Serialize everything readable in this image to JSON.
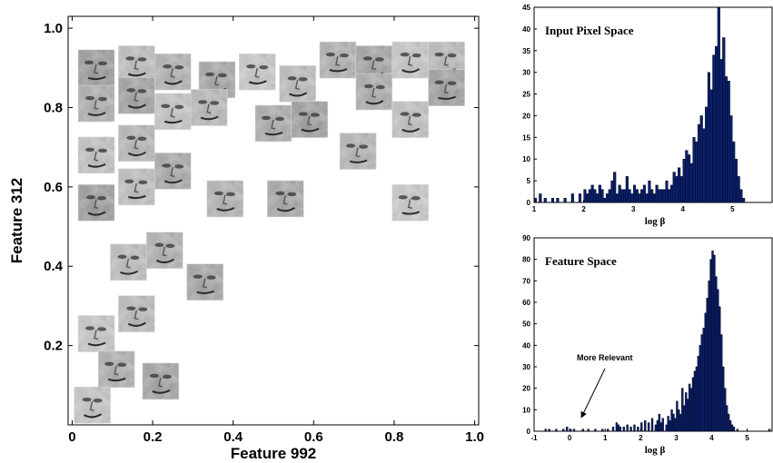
{
  "figure": {
    "scatter_xlabel": "Feature 992",
    "scatter_ylabel": "Feature 312",
    "hist_top_title": "Input Pixel Space",
    "hist_top_xlabel": "log β",
    "hist_bottom_title": "Feature Space",
    "hist_bottom_xlabel": "log β",
    "annotation": "More Relevant"
  },
  "chart_data": [
    {
      "type": "scatter",
      "title": "",
      "xlabel": "Feature 992",
      "ylabel": "Feature 312",
      "xlim": [
        -0.01,
        1.01
      ],
      "ylim": [
        0.0,
        1.03
      ],
      "xticks": [
        "0",
        "0.2",
        "0.4",
        "0.6",
        "0.8",
        "1.0"
      ],
      "yticks": [
        "0.2",
        "0.4",
        "0.6",
        "0.8",
        "1.0"
      ],
      "marker": "face-image-thumbnail",
      "points": [
        [
          0.06,
          0.9
        ],
        [
          0.16,
          0.91
        ],
        [
          0.25,
          0.89
        ],
        [
          0.36,
          0.87
        ],
        [
          0.46,
          0.89
        ],
        [
          0.56,
          0.86
        ],
        [
          0.66,
          0.92
        ],
        [
          0.75,
          0.91
        ],
        [
          0.84,
          0.92
        ],
        [
          0.93,
          0.92
        ],
        [
          0.06,
          0.81
        ],
        [
          0.16,
          0.83
        ],
        [
          0.25,
          0.79
        ],
        [
          0.34,
          0.8
        ],
        [
          0.75,
          0.84
        ],
        [
          0.93,
          0.85
        ],
        [
          0.06,
          0.68
        ],
        [
          0.16,
          0.71
        ],
        [
          0.5,
          0.76
        ],
        [
          0.59,
          0.77
        ],
        [
          0.84,
          0.77
        ],
        [
          0.71,
          0.69
        ],
        [
          0.25,
          0.64
        ],
        [
          0.06,
          0.56
        ],
        [
          0.16,
          0.6
        ],
        [
          0.38,
          0.57
        ],
        [
          0.53,
          0.57
        ],
        [
          0.84,
          0.56
        ],
        [
          0.14,
          0.41
        ],
        [
          0.23,
          0.44
        ],
        [
          0.33,
          0.36
        ],
        [
          0.06,
          0.23
        ],
        [
          0.16,
          0.28
        ],
        [
          0.11,
          0.14
        ],
        [
          0.22,
          0.11
        ],
        [
          0.05,
          0.05
        ]
      ]
    },
    {
      "type": "bar",
      "title": "Input Pixel Space",
      "xlabel": "log β",
      "ylabel": "",
      "xlim": [
        1.0,
        5.8
      ],
      "ylim": [
        0,
        45
      ],
      "xticks": [
        1,
        2,
        3,
        4,
        5
      ],
      "yticks": [
        0,
        5,
        10,
        15,
        20,
        25,
        30,
        35,
        40,
        45
      ],
      "bin_width": 0.05,
      "bins": [
        {
          "x": 1.0,
          "y": 1
        },
        {
          "x": 1.1,
          "y": 2
        },
        {
          "x": 1.2,
          "y": 1
        },
        {
          "x": 1.35,
          "y": 1
        },
        {
          "x": 1.45,
          "y": 1
        },
        {
          "x": 1.6,
          "y": 1
        },
        {
          "x": 1.75,
          "y": 2
        },
        {
          "x": 1.9,
          "y": 2
        },
        {
          "x": 2.0,
          "y": 3
        },
        {
          "x": 2.05,
          "y": 2
        },
        {
          "x": 2.1,
          "y": 3
        },
        {
          "x": 2.15,
          "y": 4
        },
        {
          "x": 2.2,
          "y": 3
        },
        {
          "x": 2.25,
          "y": 2
        },
        {
          "x": 2.3,
          "y": 4
        },
        {
          "x": 2.35,
          "y": 3
        },
        {
          "x": 2.4,
          "y": 1
        },
        {
          "x": 2.45,
          "y": 2
        },
        {
          "x": 2.5,
          "y": 3
        },
        {
          "x": 2.55,
          "y": 5
        },
        {
          "x": 2.6,
          "y": 7
        },
        {
          "x": 2.65,
          "y": 2
        },
        {
          "x": 2.7,
          "y": 4
        },
        {
          "x": 2.75,
          "y": 3
        },
        {
          "x": 2.8,
          "y": 3
        },
        {
          "x": 2.85,
          "y": 6
        },
        {
          "x": 2.9,
          "y": 3
        },
        {
          "x": 2.95,
          "y": 2
        },
        {
          "x": 3.0,
          "y": 4
        },
        {
          "x": 3.05,
          "y": 3
        },
        {
          "x": 3.1,
          "y": 2
        },
        {
          "x": 3.15,
          "y": 3
        },
        {
          "x": 3.2,
          "y": 4
        },
        {
          "x": 3.25,
          "y": 2
        },
        {
          "x": 3.3,
          "y": 5
        },
        {
          "x": 3.35,
          "y": 3
        },
        {
          "x": 3.4,
          "y": 2
        },
        {
          "x": 3.45,
          "y": 4
        },
        {
          "x": 3.5,
          "y": 3
        },
        {
          "x": 3.55,
          "y": 3
        },
        {
          "x": 3.6,
          "y": 3
        },
        {
          "x": 3.65,
          "y": 5
        },
        {
          "x": 3.7,
          "y": 3
        },
        {
          "x": 3.75,
          "y": 4
        },
        {
          "x": 3.8,
          "y": 7
        },
        {
          "x": 3.85,
          "y": 6
        },
        {
          "x": 3.9,
          "y": 8
        },
        {
          "x": 3.95,
          "y": 6
        },
        {
          "x": 4.0,
          "y": 10
        },
        {
          "x": 4.05,
          "y": 12
        },
        {
          "x": 4.1,
          "y": 11
        },
        {
          "x": 4.15,
          "y": 9
        },
        {
          "x": 4.2,
          "y": 15
        },
        {
          "x": 4.25,
          "y": 14
        },
        {
          "x": 4.3,
          "y": 18
        },
        {
          "x": 4.35,
          "y": 20
        },
        {
          "x": 4.4,
          "y": 17
        },
        {
          "x": 4.45,
          "y": 22
        },
        {
          "x": 4.5,
          "y": 30
        },
        {
          "x": 4.55,
          "y": 26
        },
        {
          "x": 4.6,
          "y": 34
        },
        {
          "x": 4.65,
          "y": 36
        },
        {
          "x": 4.7,
          "y": 45
        },
        {
          "x": 4.75,
          "y": 33
        },
        {
          "x": 4.8,
          "y": 38
        },
        {
          "x": 4.85,
          "y": 29
        },
        {
          "x": 4.9,
          "y": 28
        },
        {
          "x": 4.95,
          "y": 20
        },
        {
          "x": 5.0,
          "y": 14
        },
        {
          "x": 5.05,
          "y": 10
        },
        {
          "x": 5.1,
          "y": 6
        },
        {
          "x": 5.15,
          "y": 3
        },
        {
          "x": 5.2,
          "y": 1
        }
      ]
    },
    {
      "type": "bar",
      "title": "Feature Space",
      "xlabel": "log β",
      "ylabel": "",
      "xlim": [
        -1.0,
        5.7
      ],
      "ylim": [
        0,
        90
      ],
      "xticks": [
        -1,
        0,
        1,
        2,
        3,
        4,
        5
      ],
      "yticks": [
        0,
        10,
        20,
        30,
        40,
        50,
        60,
        70,
        80,
        90
      ],
      "annotation": "More Relevant",
      "bin_width": 0.05,
      "bins": [
        {
          "x": -0.7,
          "y": 1
        },
        {
          "x": -0.6,
          "y": 1
        },
        {
          "x": -0.4,
          "y": 1
        },
        {
          "x": -0.2,
          "y": 1
        },
        {
          "x": -0.1,
          "y": 2
        },
        {
          "x": 0.0,
          "y": 1
        },
        {
          "x": 0.1,
          "y": 1
        },
        {
          "x": 0.35,
          "y": 1
        },
        {
          "x": 0.5,
          "y": 1
        },
        {
          "x": 0.7,
          "y": 1
        },
        {
          "x": 0.9,
          "y": 1
        },
        {
          "x": 1.05,
          "y": 1
        },
        {
          "x": 1.2,
          "y": 2
        },
        {
          "x": 1.3,
          "y": 4
        },
        {
          "x": 1.35,
          "y": 3
        },
        {
          "x": 1.4,
          "y": 2
        },
        {
          "x": 1.5,
          "y": 2
        },
        {
          "x": 1.6,
          "y": 3
        },
        {
          "x": 1.7,
          "y": 2
        },
        {
          "x": 1.8,
          "y": 3
        },
        {
          "x": 1.9,
          "y": 2
        },
        {
          "x": 2.0,
          "y": 4
        },
        {
          "x": 2.1,
          "y": 5
        },
        {
          "x": 2.2,
          "y": 4
        },
        {
          "x": 2.3,
          "y": 6
        },
        {
          "x": 2.4,
          "y": 3
        },
        {
          "x": 2.45,
          "y": 5
        },
        {
          "x": 2.5,
          "y": 8
        },
        {
          "x": 2.55,
          "y": 4
        },
        {
          "x": 2.6,
          "y": 6
        },
        {
          "x": 2.7,
          "y": 3
        },
        {
          "x": 2.75,
          "y": 7
        },
        {
          "x": 2.8,
          "y": 5
        },
        {
          "x": 2.85,
          "y": 10
        },
        {
          "x": 2.9,
          "y": 8
        },
        {
          "x": 2.95,
          "y": 6
        },
        {
          "x": 3.0,
          "y": 14
        },
        {
          "x": 3.05,
          "y": 10
        },
        {
          "x": 3.1,
          "y": 8
        },
        {
          "x": 3.15,
          "y": 20
        },
        {
          "x": 3.2,
          "y": 12
        },
        {
          "x": 3.25,
          "y": 18
        },
        {
          "x": 3.3,
          "y": 15
        },
        {
          "x": 3.35,
          "y": 22
        },
        {
          "x": 3.4,
          "y": 20
        },
        {
          "x": 3.45,
          "y": 25
        },
        {
          "x": 3.5,
          "y": 28
        },
        {
          "x": 3.55,
          "y": 30
        },
        {
          "x": 3.6,
          "y": 35
        },
        {
          "x": 3.65,
          "y": 40
        },
        {
          "x": 3.7,
          "y": 45
        },
        {
          "x": 3.75,
          "y": 48
        },
        {
          "x": 3.8,
          "y": 55
        },
        {
          "x": 3.85,
          "y": 62
        },
        {
          "x": 3.9,
          "y": 70
        },
        {
          "x": 3.95,
          "y": 80
        },
        {
          "x": 4.0,
          "y": 84
        },
        {
          "x": 4.05,
          "y": 82
        },
        {
          "x": 4.1,
          "y": 72
        },
        {
          "x": 4.15,
          "y": 66
        },
        {
          "x": 4.2,
          "y": 58
        },
        {
          "x": 4.25,
          "y": 45
        },
        {
          "x": 4.3,
          "y": 30
        },
        {
          "x": 4.35,
          "y": 20
        },
        {
          "x": 4.4,
          "y": 12
        },
        {
          "x": 4.45,
          "y": 8
        },
        {
          "x": 4.5,
          "y": 5
        },
        {
          "x": 4.55,
          "y": 3
        },
        {
          "x": 4.6,
          "y": 2
        },
        {
          "x": 4.7,
          "y": 1
        },
        {
          "x": 5.6,
          "y": 1
        }
      ]
    }
  ]
}
